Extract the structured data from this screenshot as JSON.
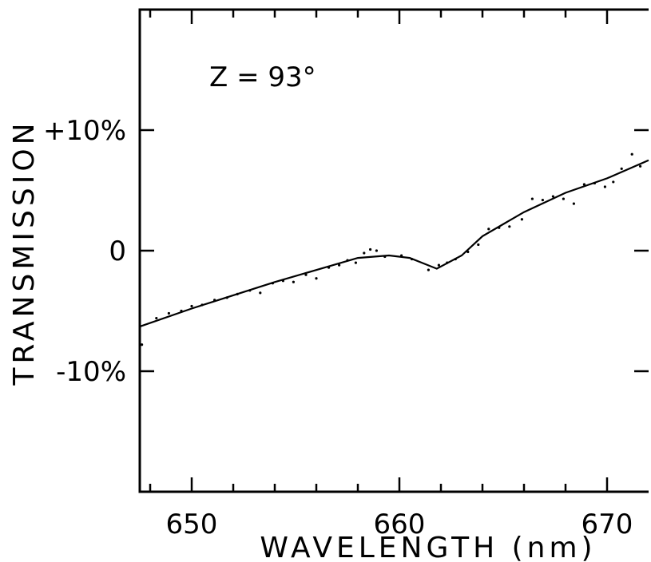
{
  "chart_data": {
    "type": "scatter",
    "title": "",
    "annotation": "Z = 93°",
    "xlabel": "WAVELENGTH (nm)",
    "ylabel": "TRANSMISSION",
    "xlim": [
      647.5,
      672
    ],
    "ylim": [
      -20,
      20
    ],
    "x_ticks": [
      650,
      660,
      670
    ],
    "x_tick_labels": [
      "650",
      "660",
      "670"
    ],
    "x_minor_ticks": [
      648,
      652,
      654,
      656,
      658,
      662,
      664,
      666,
      668
    ],
    "y_ticks": [
      10,
      0,
      -10
    ],
    "y_tick_labels": [
      "+10%",
      "0",
      "-10%"
    ],
    "grid": false,
    "legend": "none",
    "fit_line": {
      "x": [
        647.5,
        650,
        652,
        654,
        656,
        658,
        659.5,
        660.5,
        661.8,
        663,
        664,
        666,
        668,
        670,
        672
      ],
      "y": [
        -6.3,
        -4.8,
        -3.7,
        -2.6,
        -1.6,
        -0.6,
        -0.4,
        -0.6,
        -1.5,
        -0.4,
        1.2,
        3.2,
        4.8,
        6.0,
        7.5
      ]
    },
    "points": {
      "x": [
        647.6,
        648.3,
        648.9,
        649.5,
        650.0,
        650.5,
        651.1,
        651.7,
        652.2,
        652.8,
        653.3,
        653.9,
        654.4,
        654.9,
        655.5,
        656.0,
        656.6,
        657.1,
        657.5,
        657.9,
        658.3,
        658.6,
        658.9,
        659.3,
        660.1,
        660.6,
        661.4,
        661.9,
        662.3,
        662.7,
        663.3,
        663.8,
        664.3,
        664.8,
        665.3,
        665.9,
        666.4,
        666.9,
        667.4,
        667.9,
        668.4,
        668.9,
        669.4,
        669.9,
        670.3,
        670.7,
        671.2,
        671.6
      ],
      "y": [
        -7.8,
        -5.6,
        -5.2,
        -5.0,
        -4.6,
        -4.5,
        -4.1,
        -3.9,
        -3.6,
        -3.3,
        -3.5,
        -2.7,
        -2.5,
        -2.6,
        -2.0,
        -2.3,
        -1.4,
        -1.2,
        -0.8,
        -1.0,
        -0.2,
        0.1,
        0.0,
        -0.5,
        -0.4,
        -0.7,
        -1.6,
        -1.2,
        -1.0,
        -0.7,
        -0.1,
        0.5,
        1.8,
        1.9,
        2.0,
        2.6,
        4.3,
        4.2,
        4.5,
        4.3,
        3.9,
        5.5,
        5.6,
        5.3,
        5.7,
        6.8,
        8.0,
        7.0
      ]
    }
  }
}
